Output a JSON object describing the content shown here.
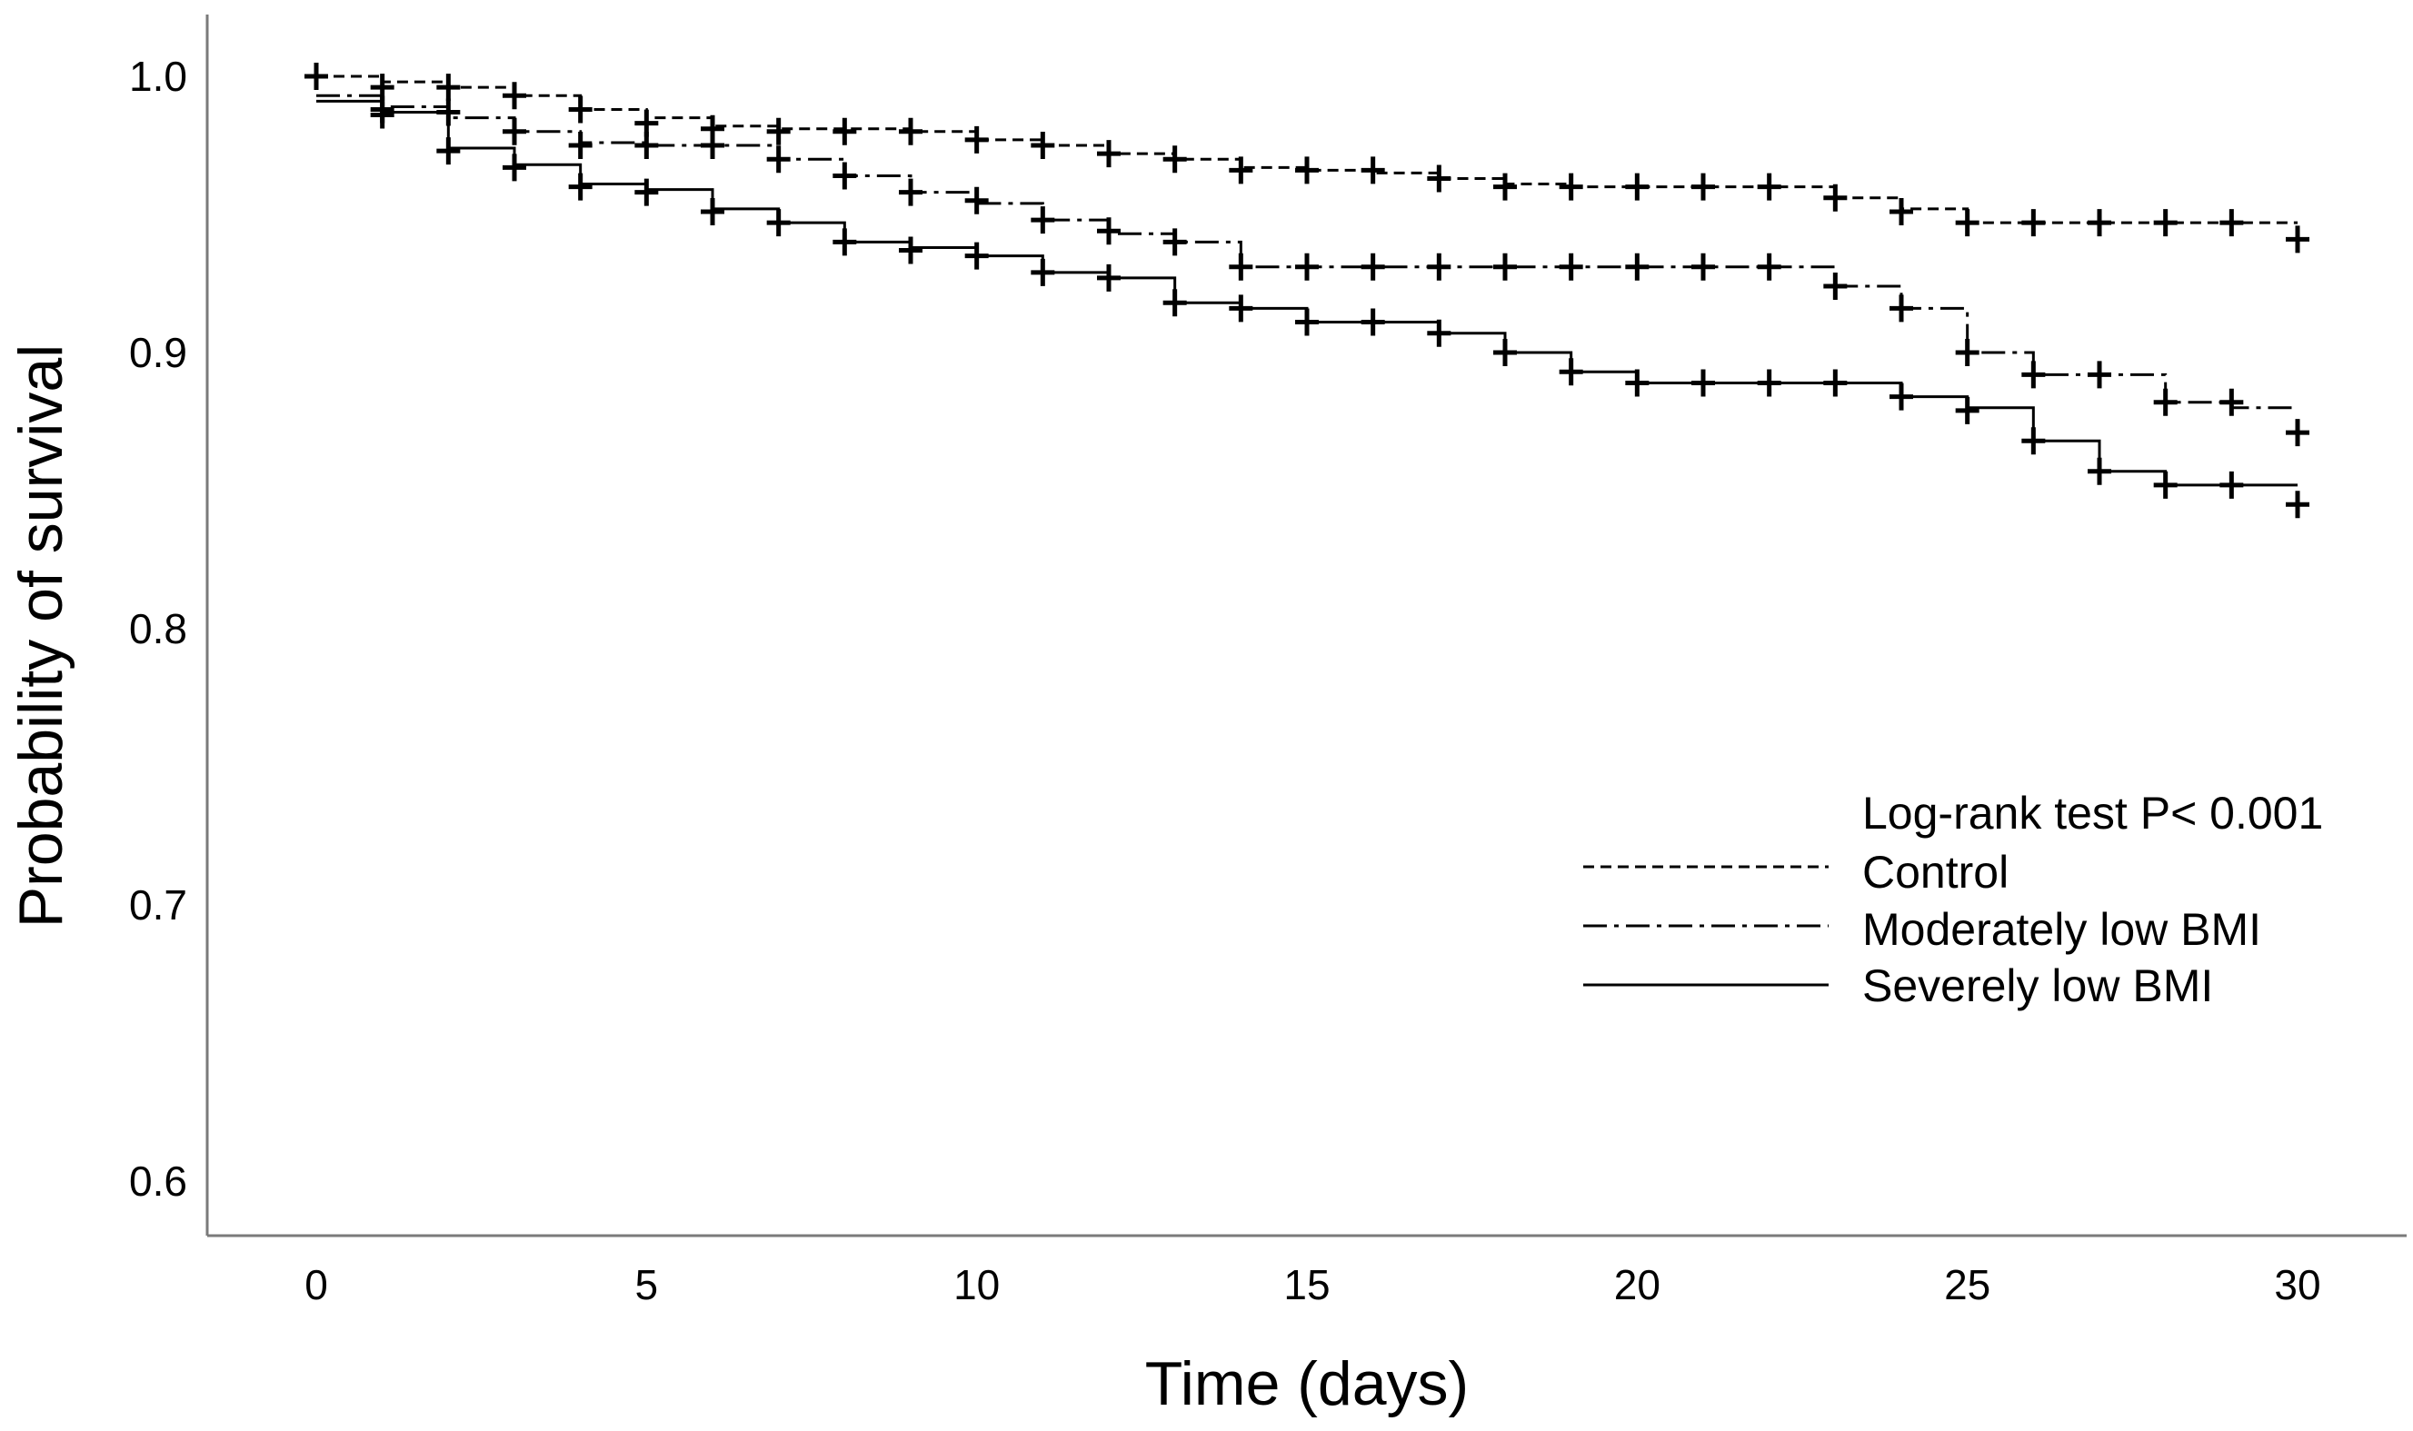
{
  "chart_data": {
    "type": "line",
    "subtype": "kaplan-meier",
    "title": "",
    "xlabel": "Time (days)",
    "ylabel": "Probability of survival",
    "xlim": [
      0,
      30
    ],
    "ylim": [
      0.6,
      1.0
    ],
    "xticks": [
      0,
      5,
      10,
      15,
      20,
      25,
      30
    ],
    "yticks": [
      0.6,
      0.7,
      0.8,
      0.9,
      1.0
    ],
    "xtick_labels": [
      "0",
      "5",
      "10",
      "15",
      "20",
      "25",
      "30"
    ],
    "ytick_labels": [
      "0.6",
      "0.7",
      "0.8",
      "0.9",
      "1.0"
    ],
    "grid": false,
    "annotation": "Log-rank test P< 0.001",
    "legend_position": "bottom-right",
    "color": "#000000",
    "series": [
      {
        "name": "Control",
        "line_style": "dashed",
        "steps": [
          [
            0,
            1.0
          ],
          [
            1,
            0.998
          ],
          [
            2,
            0.996
          ],
          [
            3,
            0.993
          ],
          [
            4,
            0.988
          ],
          [
            5,
            0.985
          ],
          [
            6,
            0.982
          ],
          [
            7,
            0.981
          ],
          [
            8,
            0.981
          ],
          [
            9,
            0.98
          ],
          [
            10,
            0.977
          ],
          [
            11,
            0.975
          ],
          [
            12,
            0.972
          ],
          [
            13,
            0.97
          ],
          [
            14,
            0.967
          ],
          [
            15,
            0.966
          ],
          [
            16,
            0.965
          ],
          [
            17,
            0.963
          ],
          [
            18,
            0.961
          ],
          [
            19,
            0.96
          ],
          [
            20,
            0.96
          ],
          [
            21,
            0.96
          ],
          [
            22,
            0.96
          ],
          [
            23,
            0.956
          ],
          [
            24,
            0.952
          ],
          [
            25,
            0.947
          ],
          [
            26,
            0.947
          ],
          [
            27,
            0.947
          ],
          [
            28,
            0.947
          ],
          [
            29,
            0.947
          ],
          [
            30,
            0.947
          ]
        ],
        "censor_points": [
          [
            0,
            1.0
          ],
          [
            1,
            0.996
          ],
          [
            2,
            0.996
          ],
          [
            3,
            0.993
          ],
          [
            4,
            0.988
          ],
          [
            5,
            0.983
          ],
          [
            6,
            0.981
          ],
          [
            7,
            0.98
          ],
          [
            8,
            0.98
          ],
          [
            9,
            0.98
          ],
          [
            10,
            0.977
          ],
          [
            11,
            0.975
          ],
          [
            12,
            0.972
          ],
          [
            13,
            0.97
          ],
          [
            14,
            0.966
          ],
          [
            15,
            0.966
          ],
          [
            16,
            0.966
          ],
          [
            17,
            0.963
          ],
          [
            18,
            0.96
          ],
          [
            19,
            0.96
          ],
          [
            20,
            0.96
          ],
          [
            21,
            0.96
          ],
          [
            22,
            0.96
          ],
          [
            23,
            0.956
          ],
          [
            24,
            0.951
          ],
          [
            25,
            0.947
          ],
          [
            26,
            0.947
          ],
          [
            27,
            0.947
          ],
          [
            28,
            0.947
          ],
          [
            29,
            0.947
          ],
          [
            30,
            0.941
          ]
        ]
      },
      {
        "name": "Moderately low BMI",
        "line_style": "dashdot",
        "steps": [
          [
            0,
            0.993
          ],
          [
            1,
            0.989
          ],
          [
            2,
            0.985
          ],
          [
            3,
            0.98
          ],
          [
            4,
            0.976
          ],
          [
            5,
            0.975
          ],
          [
            6,
            0.975
          ],
          [
            7,
            0.97
          ],
          [
            8,
            0.964
          ],
          [
            9,
            0.958
          ],
          [
            10,
            0.954
          ],
          [
            11,
            0.948
          ],
          [
            12,
            0.943
          ],
          [
            13,
            0.94
          ],
          [
            14,
            0.931
          ],
          [
            15,
            0.931
          ],
          [
            16,
            0.931
          ],
          [
            17,
            0.931
          ],
          [
            18,
            0.931
          ],
          [
            19,
            0.931
          ],
          [
            20,
            0.931
          ],
          [
            21,
            0.931
          ],
          [
            22,
            0.931
          ],
          [
            23,
            0.924
          ],
          [
            24,
            0.916
          ],
          [
            25,
            0.9
          ],
          [
            26,
            0.892
          ],
          [
            27,
            0.892
          ],
          [
            28,
            0.882
          ],
          [
            29,
            0.88
          ],
          [
            30,
            0.88
          ]
        ],
        "censor_points": [
          [
            0,
            1.0
          ],
          [
            1,
            0.988
          ],
          [
            2,
            0.987
          ],
          [
            3,
            0.98
          ],
          [
            4,
            0.975
          ],
          [
            5,
            0.975
          ],
          [
            6,
            0.975
          ],
          [
            7,
            0.97
          ],
          [
            8,
            0.964
          ],
          [
            9,
            0.958
          ],
          [
            10,
            0.955
          ],
          [
            11,
            0.948
          ],
          [
            12,
            0.944
          ],
          [
            13,
            0.94
          ],
          [
            14,
            0.931
          ],
          [
            15,
            0.931
          ],
          [
            16,
            0.931
          ],
          [
            17,
            0.931
          ],
          [
            18,
            0.931
          ],
          [
            19,
            0.931
          ],
          [
            20,
            0.931
          ],
          [
            21,
            0.931
          ],
          [
            22,
            0.931
          ],
          [
            23,
            0.924
          ],
          [
            24,
            0.916
          ],
          [
            25,
            0.9
          ],
          [
            26,
            0.892
          ],
          [
            27,
            0.892
          ],
          [
            28,
            0.882
          ],
          [
            29,
            0.882
          ],
          [
            30,
            0.871
          ]
        ]
      },
      {
        "name": "Severely low BMI",
        "line_style": "solid",
        "steps": [
          [
            0,
            0.991
          ],
          [
            1,
            0.987
          ],
          [
            2,
            0.974
          ],
          [
            3,
            0.968
          ],
          [
            4,
            0.961
          ],
          [
            5,
            0.959
          ],
          [
            6,
            0.952
          ],
          [
            7,
            0.947
          ],
          [
            8,
            0.94
          ],
          [
            9,
            0.938
          ],
          [
            10,
            0.935
          ],
          [
            11,
            0.929
          ],
          [
            12,
            0.927
          ],
          [
            13,
            0.918
          ],
          [
            14,
            0.916
          ],
          [
            15,
            0.911
          ],
          [
            16,
            0.911
          ],
          [
            17,
            0.907
          ],
          [
            18,
            0.9
          ],
          [
            19,
            0.893
          ],
          [
            20,
            0.889
          ],
          [
            21,
            0.889
          ],
          [
            22,
            0.889
          ],
          [
            23,
            0.889
          ],
          [
            24,
            0.884
          ],
          [
            25,
            0.88
          ],
          [
            26,
            0.868
          ],
          [
            27,
            0.857
          ],
          [
            28,
            0.852
          ],
          [
            29,
            0.852
          ],
          [
            30,
            0.852
          ]
        ],
        "censor_points": [
          [
            0,
            1.0
          ],
          [
            1,
            0.986
          ],
          [
            2,
            0.973
          ],
          [
            3,
            0.967
          ],
          [
            4,
            0.96
          ],
          [
            5,
            0.958
          ],
          [
            6,
            0.951
          ],
          [
            7,
            0.947
          ],
          [
            8,
            0.94
          ],
          [
            9,
            0.937
          ],
          [
            10,
            0.935
          ],
          [
            11,
            0.929
          ],
          [
            12,
            0.927
          ],
          [
            13,
            0.918
          ],
          [
            14,
            0.916
          ],
          [
            15,
            0.911
          ],
          [
            16,
            0.911
          ],
          [
            17,
            0.907
          ],
          [
            18,
            0.9
          ],
          [
            19,
            0.893
          ],
          [
            20,
            0.889
          ],
          [
            21,
            0.889
          ],
          [
            22,
            0.889
          ],
          [
            23,
            0.889
          ],
          [
            24,
            0.884
          ],
          [
            25,
            0.879
          ],
          [
            26,
            0.868
          ],
          [
            27,
            0.857
          ],
          [
            28,
            0.852
          ],
          [
            29,
            0.852
          ],
          [
            30,
            0.845
          ]
        ]
      }
    ]
  }
}
